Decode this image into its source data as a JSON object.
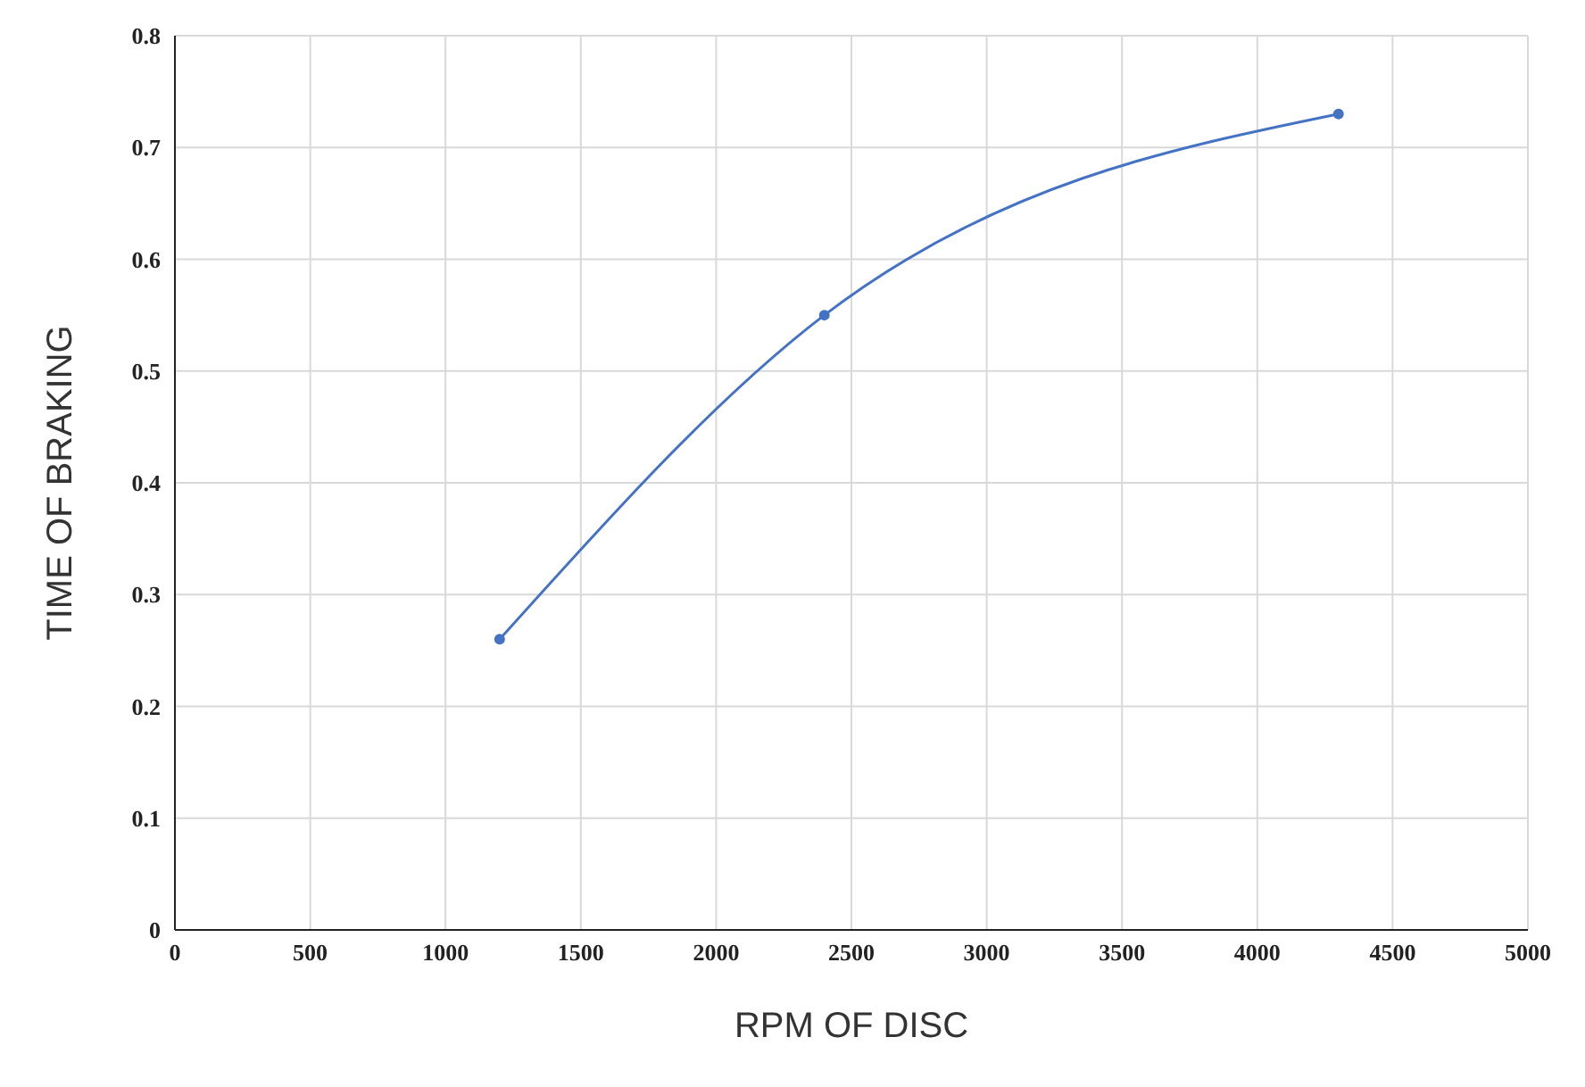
{
  "chart_data": {
    "type": "line",
    "xlabel": "RPM OF DISC",
    "ylabel": "TIME OF BRAKING",
    "x": [
      1200,
      2400,
      4300
    ],
    "series": [
      {
        "color": "#4472c4",
        "values": [
          0.26,
          0.55,
          0.73
        ]
      }
    ],
    "xlim": [
      0,
      5000
    ],
    "xticks": [
      0,
      500,
      1000,
      1500,
      2000,
      2500,
      3000,
      3500,
      4000,
      4500,
      5000
    ],
    "ylim": [
      0,
      0.8
    ],
    "yticks": [
      0,
      0.1,
      0.2,
      0.3,
      0.4,
      0.5,
      0.6,
      0.7,
      0.8
    ],
    "grid": true,
    "marker": "circle",
    "line_style": "solid"
  }
}
